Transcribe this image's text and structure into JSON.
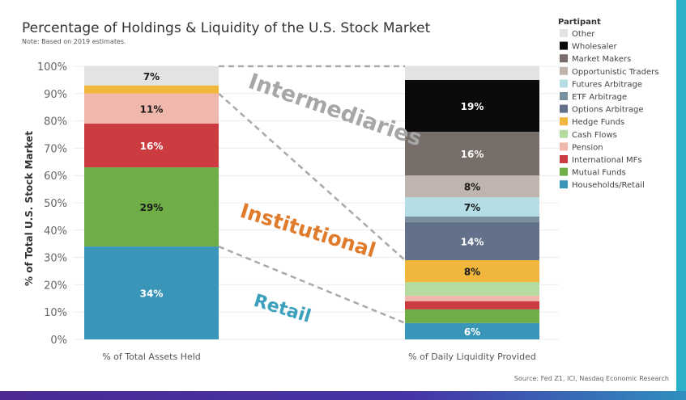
{
  "title": "Percentage of Holdings & Liquidity of the U.S. Stock Market",
  "note": "Note: Based on 2019 estimates.",
  "source": "Source: Fed Z1, ICI, Nasdaq Economic Research",
  "legend_title": "Partipant",
  "annotations": {
    "intermediaries": "Intermediaries",
    "institutional": "Institutional",
    "retail": "Retail"
  },
  "colors": {
    "accent_stripe": "#2ab0c8",
    "anno_intermediaries": "#a6a6a6",
    "anno_institutional": "#e07b2c",
    "anno_retail": "#3aa0bc"
  },
  "chart_data": {
    "type": "bar",
    "stacked": true,
    "categories": [
      "% of Total Assets Held",
      "% of Daily Liquidity Provided"
    ],
    "ylabel": "% of Total U.S. Stock Market",
    "xlabel": "",
    "ylim": [
      0,
      100
    ],
    "yticks": [
      "0%",
      "10%",
      "20%",
      "30%",
      "40%",
      "50%",
      "60%",
      "70%",
      "80%",
      "90%",
      "100%"
    ],
    "series": [
      {
        "name": "Households/Retail",
        "color": "#3a96b9",
        "values": [
          34,
          6
        ],
        "labels": [
          "34%",
          "6%"
        ]
      },
      {
        "name": "Mutual Funds",
        "color": "#6fad47",
        "values": [
          29,
          5
        ],
        "labels": [
          "29%",
          ""
        ]
      },
      {
        "name": "International MFs",
        "color": "#cc3b3f",
        "values": [
          16,
          3
        ],
        "labels": [
          "16%",
          ""
        ]
      },
      {
        "name": "Pension",
        "color": "#f0b7ad",
        "values": [
          11,
          2
        ],
        "labels": [
          "11%",
          ""
        ]
      },
      {
        "name": "Cash Flows",
        "color": "#b6dba0",
        "values": [
          0,
          5
        ],
        "labels": [
          "",
          ""
        ]
      },
      {
        "name": "Hedge Funds",
        "color": "#f1b73d",
        "values": [
          3,
          8
        ],
        "labels": [
          "",
          "8%"
        ]
      },
      {
        "name": "Options Arbitrage",
        "color": "#637089",
        "values": [
          0,
          14
        ],
        "labels": [
          "",
          "14%"
        ]
      },
      {
        "name": "ETF Arbitrage",
        "color": "#7b909e",
        "values": [
          0,
          2
        ],
        "labels": [
          "",
          ""
        ]
      },
      {
        "name": "Futures Arbitrage",
        "color": "#b5dde6",
        "values": [
          0,
          7
        ],
        "labels": [
          "",
          "7%"
        ]
      },
      {
        "name": "Opportunistic Traders",
        "color": "#bfb4ae",
        "values": [
          0,
          8
        ],
        "labels": [
          "",
          "8%"
        ]
      },
      {
        "name": "Market Makers",
        "color": "#776d69",
        "values": [
          0,
          16
        ],
        "labels": [
          "",
          "16%"
        ]
      },
      {
        "name": "Wholesaler",
        "color": "#0a0a0a",
        "values": [
          0,
          19
        ],
        "labels": [
          "",
          "19%"
        ]
      },
      {
        "name": "Other",
        "color": "#e3e3e3",
        "values": [
          7,
          5
        ],
        "labels": [
          "7%",
          ""
        ]
      }
    ],
    "legend_order": [
      "Other",
      "Wholesaler",
      "Market Makers",
      "Opportunistic Traders",
      "Futures Arbitrage",
      "ETF Arbitrage",
      "Options Arbitrage",
      "Hedge Funds",
      "Cash Flows",
      "Pension",
      "International MFs",
      "Mutual Funds",
      "Households/Retail"
    ],
    "grid": true,
    "legend_position": "top-right"
  }
}
